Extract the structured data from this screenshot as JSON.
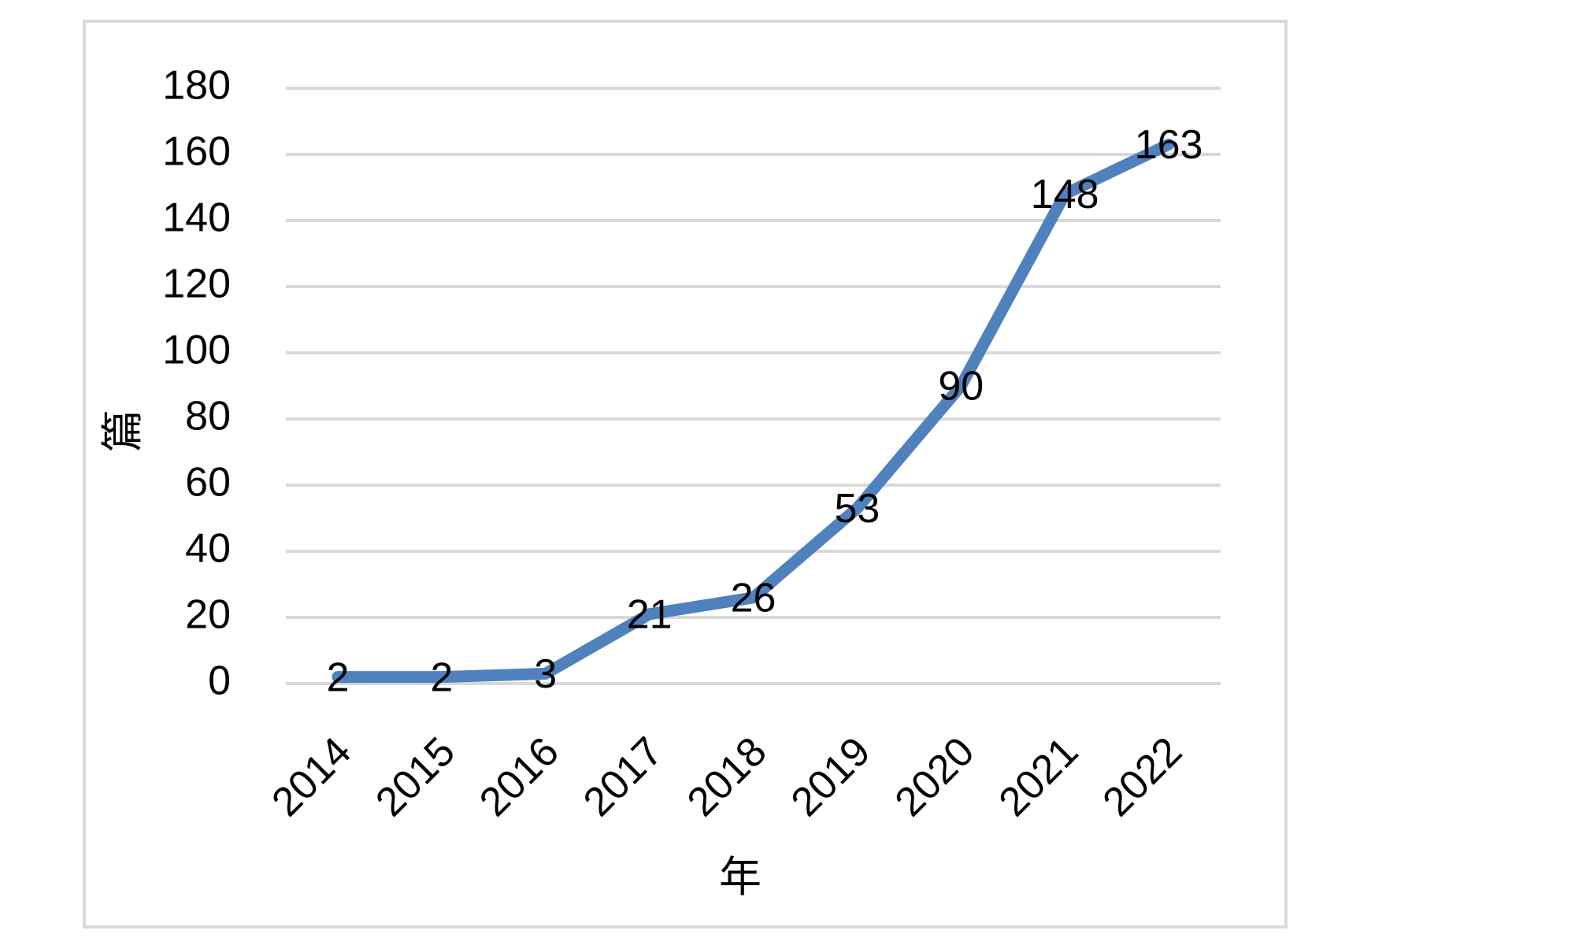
{
  "chart_data": {
    "type": "line",
    "x_label": "年",
    "y_label": "篇",
    "categories": [
      "2014",
      "2015",
      "2016",
      "2017",
      "2018",
      "2019",
      "2020",
      "2021",
      "2022"
    ],
    "series": [
      {
        "name": "篇",
        "color": "#4f81bd",
        "values": [
          2,
          2,
          3,
          21,
          26,
          53,
          90,
          148,
          163
        ]
      }
    ],
    "ylim": [
      0,
      180
    ],
    "yticks": [
      0,
      20,
      40,
      60,
      80,
      100,
      120,
      140,
      160,
      180
    ],
    "grid": true,
    "data_labels": true
  }
}
